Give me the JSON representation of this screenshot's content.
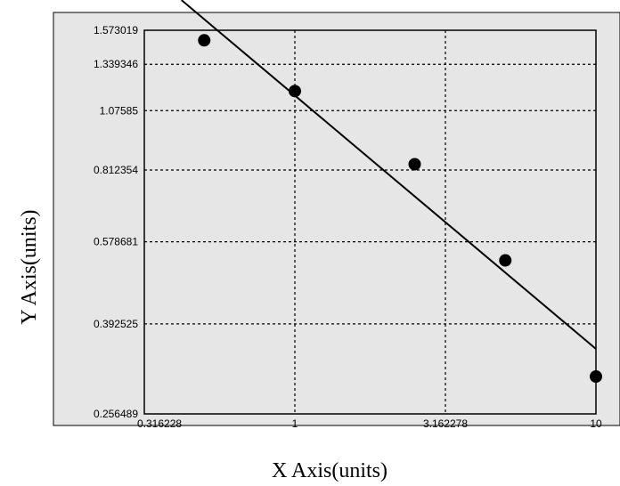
{
  "chart_data": {
    "type": "scatter",
    "title": "",
    "xlabel": "X Axis(units)",
    "ylabel": "Y Axis(units)",
    "x_scale": "log",
    "y_scale": "log",
    "xlim": [
      0.316228,
      10
    ],
    "ylim": [
      0.256489,
      1.573019
    ],
    "x_ticks": [
      "0.316228",
      "1",
      "3.162278",
      "10"
    ],
    "y_ticks": [
      "1.573019",
      "1.339346",
      "1.07585",
      "0.812354",
      "0.578681",
      "0.392525",
      "0.256489"
    ],
    "grid": true,
    "legend": "none",
    "series": [
      {
        "points": [
          {
            "x": 0.5,
            "y": 1.5
          },
          {
            "x": 1.0,
            "y": 1.18
          },
          {
            "x": 2.5,
            "y": 0.835
          },
          {
            "x": 5.0,
            "y": 0.53
          },
          {
            "x": 10.0,
            "y": 0.306
          }
        ]
      }
    ],
    "fit_line": {
      "x_start": 0.42,
      "x_end": 10.0
    },
    "colors": {
      "plot_background": "#e6e6e6",
      "marker": "#000000",
      "line": "#000000",
      "grid": "#000000"
    }
  }
}
